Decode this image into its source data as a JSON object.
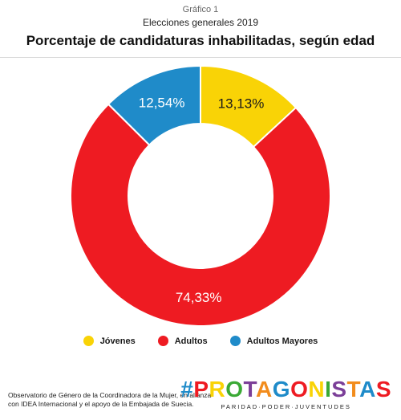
{
  "header": {
    "kicker": "Gráfico 1",
    "subtitle": "Elecciones generales 2019",
    "title": "Porcentaje de candidaturas inhabilitadas, según edad"
  },
  "chart_data": {
    "type": "pie",
    "variant": "donut",
    "categories": [
      "Jóvenes",
      "Adultos",
      "Adultos Mayores"
    ],
    "values": [
      13.13,
      74.33,
      12.54
    ],
    "labels": [
      "13,13%",
      "74,33%",
      "12,54%"
    ],
    "colors": [
      "#f9d306",
      "#ee1b22",
      "#1f8bc9"
    ],
    "start": "12 o'clock, clockwise",
    "legend_position": "bottom"
  },
  "footer": {
    "note": "Observatorio de Género de la Coordinadora de la Mujer, en alianza con IDEA Internacional y el apoyo de la Embajada de Suecia.",
    "brand_name": "#PROTAGONISTAS",
    "brand_tagline": "PARIDAD·PODER·JUVENTUDES",
    "brand_colors": [
      "#1f8bc9",
      "#ee1b22",
      "#f9d306",
      "#3aa935",
      "#7b3f98",
      "#f28c1c",
      "#1f8bc9",
      "#ee1b22",
      "#f9d306",
      "#3aa935",
      "#7b3f98",
      "#f28c1c",
      "#1f8bc9",
      "#ee1b22"
    ]
  }
}
